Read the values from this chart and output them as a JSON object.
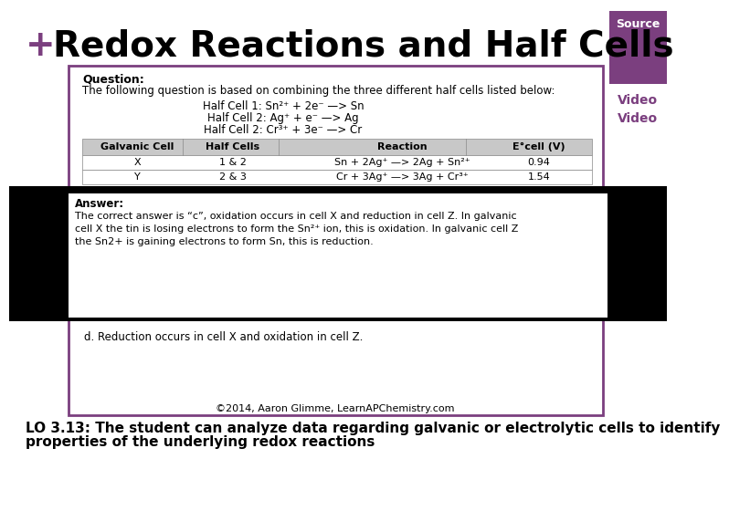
{
  "title_color": "#000000",
  "title_plus_color": "#7B3F7F",
  "title_fontsize": 28,
  "bg_color": "#FFFFFF",
  "source_label": "Source",
  "video_label": "Video",
  "purple_color": "#7B3F7F",
  "question_box": {
    "border_color": "#7B3F7F",
    "question_text": "Question:",
    "intro_text": "The following question is based on combining the three different half cells listed below:",
    "half_cells": [
      "Half Cell 1: Sn²⁺ + 2e⁻ —> Sn",
      "Half Cell 2: Ag⁺ + e⁻ —> Ag",
      "Half Cell 2: Cr³⁺ + 3e⁻ —> Cr"
    ],
    "table_headers": [
      "Galvanic Cell",
      "Half Cells",
      "Reaction",
      "E°cell (V)"
    ],
    "table_rows": [
      [
        "X",
        "1 & 2",
        "Sn + 2Ag⁺ —> 2Ag + Sn²⁺",
        "0.94"
      ],
      [
        "Y",
        "2 & 3",
        "Cr + 3Ag⁺ —> 3Ag + Cr³⁺",
        "1.54"
      ]
    ],
    "answer_label": "Answer:",
    "answer_detail": "The correct answer is “c”, oxidation occurs in cell X and reduction in cell Z. In galvanic\ncell X the tin is losing electrons to form the Sn²⁺ ion, this is oxidation. In galvanic cell Z\nthe Sn2+ is gaining electrons to form Sn, this is reduction.",
    "option_d": "d. Reduction occurs in cell X and oxidation in cell Z.",
    "copyright": "©2014, Aaron Glimme, LearnAPChemistry.com"
  },
  "lo_text_line1": "LO 3.13: The student can analyze data regarding galvanic or electrolytic cells to identify",
  "lo_text_line2": "properties of the underlying redox reactions",
  "lo_fontsize": 11,
  "lo_color": "#000000"
}
